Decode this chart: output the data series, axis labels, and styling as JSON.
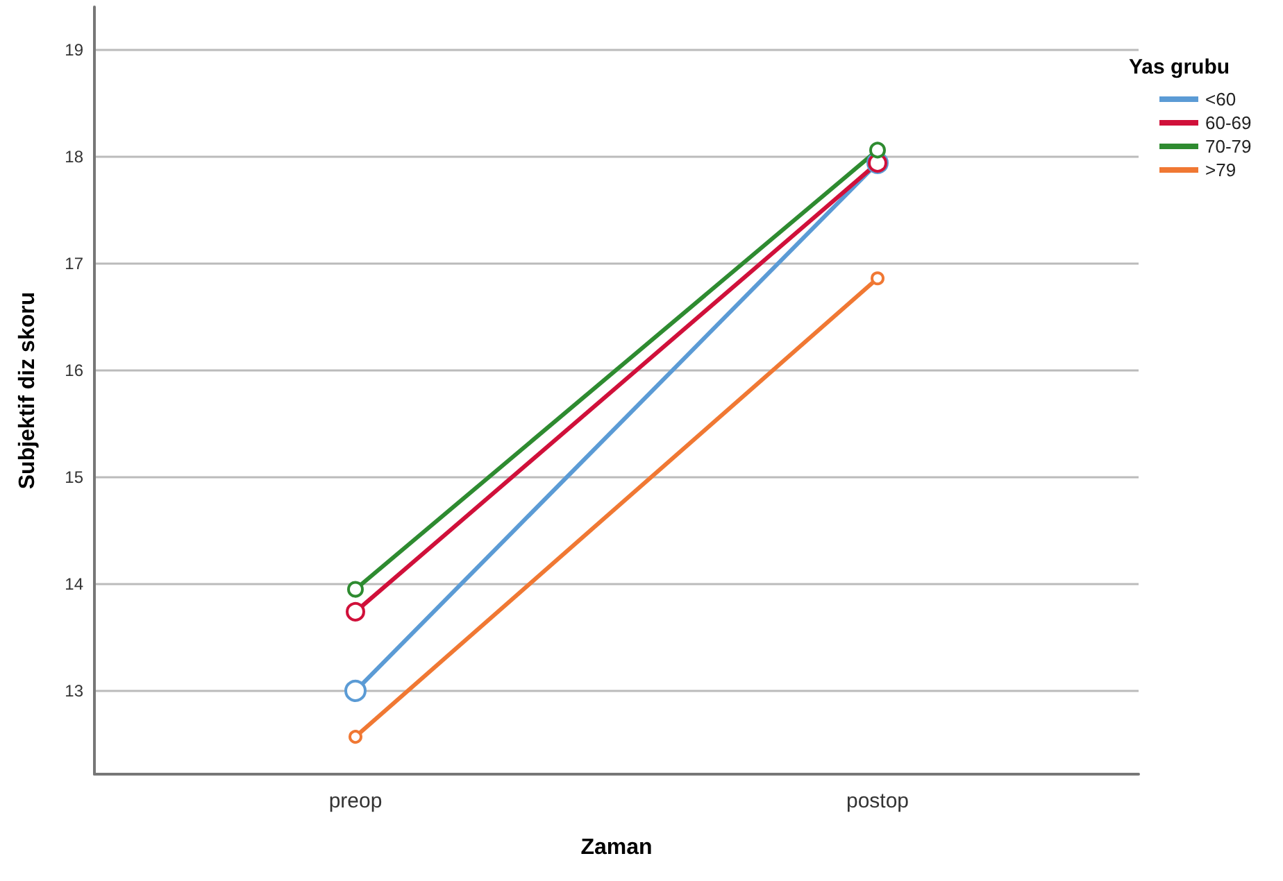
{
  "chart_data": {
    "type": "line",
    "xlabel": "Zaman",
    "ylabel": "Subjektif diz skoru",
    "legend_title": "Yas grubu",
    "categories": [
      "preop",
      "postop"
    ],
    "series": [
      {
        "name": "<60",
        "color": "#5b9bd5",
        "values": [
          13.0,
          17.94
        ]
      },
      {
        "name": "60-69",
        "color": "#d0103a",
        "values": [
          13.74,
          17.94
        ]
      },
      {
        "name": "70-79",
        "color": "#2e8b30",
        "values": [
          13.95,
          18.06
        ]
      },
      {
        "name": ">79",
        "color": "#f07833",
        "values": [
          12.57,
          16.86
        ]
      }
    ],
    "ylim": [
      12.22,
      19.4
    ],
    "yticks": [
      13,
      14,
      15,
      16,
      17,
      18,
      19
    ],
    "grid": "y",
    "legend": "top right",
    "marker": "circle",
    "line_style": "solid"
  }
}
